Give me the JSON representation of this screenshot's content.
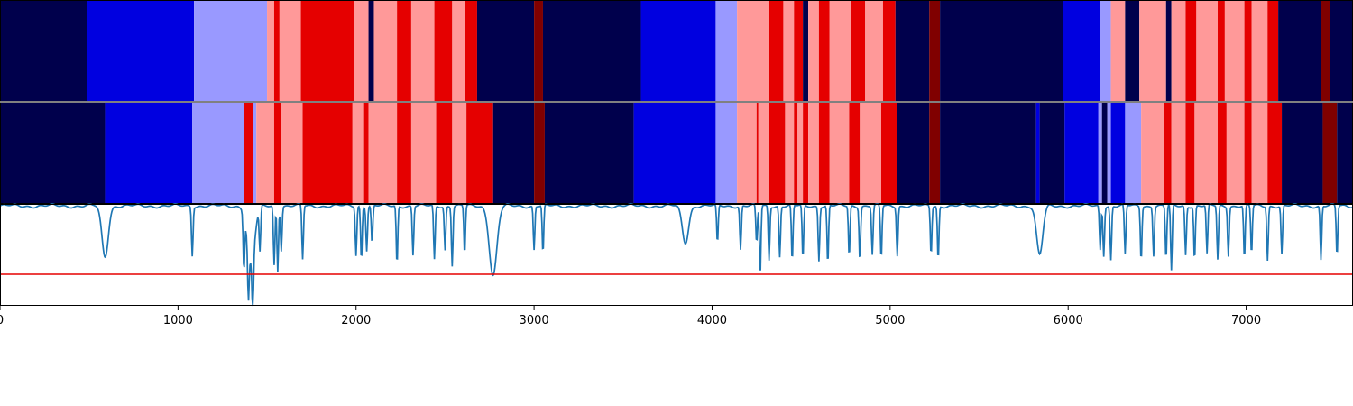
{
  "chart_data": {
    "type": "heatmap",
    "x_range": [
      0,
      7600
    ],
    "x_ticks": [
      0,
      1000,
      2000,
      3000,
      4000,
      5000,
      6000,
      7000
    ],
    "x_tick_labels": [
      "0",
      "1000",
      "2000",
      "3000",
      "4000",
      "5000",
      "6000",
      "7000"
    ],
    "state_colors": {
      "0": "#00004c",
      "1": "#0000e0",
      "2": "#9999ff",
      "3": "#ff9999",
      "4": "#e50000",
      "5": "#800000"
    },
    "track_1_states": [
      [
        0,
        490,
        0
      ],
      [
        490,
        1090,
        1
      ],
      [
        1090,
        1500,
        2
      ],
      [
        1500,
        1540,
        3
      ],
      [
        1540,
        1570,
        4
      ],
      [
        1570,
        1690,
        3
      ],
      [
        1690,
        1990,
        4
      ],
      [
        1990,
        2070,
        3
      ],
      [
        2070,
        2100,
        0
      ],
      [
        2100,
        2230,
        3
      ],
      [
        2230,
        2310,
        4
      ],
      [
        2310,
        2440,
        3
      ],
      [
        2440,
        2540,
        4
      ],
      [
        2540,
        2610,
        3
      ],
      [
        2610,
        2680,
        4
      ],
      [
        2680,
        3000,
        0
      ],
      [
        3000,
        3050,
        5
      ],
      [
        3050,
        3600,
        0
      ],
      [
        3600,
        4020,
        1
      ],
      [
        4020,
        4140,
        2
      ],
      [
        4140,
        4320,
        3
      ],
      [
        4320,
        4400,
        4
      ],
      [
        4400,
        4460,
        3
      ],
      [
        4460,
        4510,
        4
      ],
      [
        4510,
        4540,
        0
      ],
      [
        4540,
        4600,
        3
      ],
      [
        4600,
        4660,
        4
      ],
      [
        4660,
        4780,
        3
      ],
      [
        4780,
        4860,
        4
      ],
      [
        4860,
        4960,
        3
      ],
      [
        4960,
        5030,
        4
      ],
      [
        5030,
        5220,
        0
      ],
      [
        5220,
        5280,
        5
      ],
      [
        5280,
        5970,
        0
      ],
      [
        5970,
        6180,
        1
      ],
      [
        6180,
        6240,
        2
      ],
      [
        6240,
        6320,
        3
      ],
      [
        6320,
        6400,
        0
      ],
      [
        6400,
        6550,
        3
      ],
      [
        6550,
        6580,
        0
      ],
      [
        6580,
        6660,
        3
      ],
      [
        6660,
        6720,
        4
      ],
      [
        6720,
        6840,
        3
      ],
      [
        6840,
        6880,
        4
      ],
      [
        6880,
        6990,
        3
      ],
      [
        6990,
        7030,
        4
      ],
      [
        7030,
        7120,
        3
      ],
      [
        7120,
        7180,
        4
      ],
      [
        7180,
        7420,
        0
      ],
      [
        7420,
        7470,
        5
      ],
      [
        7470,
        7600,
        0
      ]
    ],
    "track_2_states": [
      [
        0,
        590,
        0
      ],
      [
        590,
        1080,
        1
      ],
      [
        1080,
        1370,
        2
      ],
      [
        1370,
        1420,
        4
      ],
      [
        1420,
        1440,
        2
      ],
      [
        1440,
        1540,
        3
      ],
      [
        1540,
        1580,
        4
      ],
      [
        1580,
        1700,
        3
      ],
      [
        1700,
        1980,
        4
      ],
      [
        1980,
        2040,
        3
      ],
      [
        2040,
        2070,
        4
      ],
      [
        2070,
        2230,
        3
      ],
      [
        2230,
        2310,
        4
      ],
      [
        2310,
        2450,
        3
      ],
      [
        2450,
        2540,
        4
      ],
      [
        2540,
        2620,
        3
      ],
      [
        2620,
        2770,
        4
      ],
      [
        2770,
        3000,
        0
      ],
      [
        3000,
        3060,
        5
      ],
      [
        3060,
        3560,
        0
      ],
      [
        3560,
        4020,
        1
      ],
      [
        4020,
        4140,
        2
      ],
      [
        4140,
        4250,
        3
      ],
      [
        4250,
        4260,
        4
      ],
      [
        4260,
        4320,
        3
      ],
      [
        4320,
        4410,
        4
      ],
      [
        4410,
        4460,
        3
      ],
      [
        4460,
        4480,
        4
      ],
      [
        4480,
        4510,
        3
      ],
      [
        4510,
        4540,
        4
      ],
      [
        4540,
        4600,
        3
      ],
      [
        4600,
        4660,
        4
      ],
      [
        4660,
        4770,
        3
      ],
      [
        4770,
        4830,
        4
      ],
      [
        4830,
        4950,
        3
      ],
      [
        4950,
        5040,
        4
      ],
      [
        5040,
        5220,
        0
      ],
      [
        5220,
        5280,
        5
      ],
      [
        5280,
        5820,
        0
      ],
      [
        5820,
        5840,
        1
      ],
      [
        5840,
        5980,
        0
      ],
      [
        5980,
        6170,
        1
      ],
      [
        6170,
        6190,
        2
      ],
      [
        6190,
        6220,
        0
      ],
      [
        6220,
        6240,
        2
      ],
      [
        6240,
        6320,
        1
      ],
      [
        6320,
        6410,
        2
      ],
      [
        6410,
        6540,
        3
      ],
      [
        6540,
        6580,
        4
      ],
      [
        6580,
        6660,
        3
      ],
      [
        6660,
        6710,
        4
      ],
      [
        6710,
        6840,
        3
      ],
      [
        6840,
        6890,
        4
      ],
      [
        6890,
        6990,
        3
      ],
      [
        6990,
        7030,
        4
      ],
      [
        7030,
        7120,
        3
      ],
      [
        7120,
        7200,
        4
      ],
      [
        7200,
        7430,
        0
      ],
      [
        7430,
        7510,
        5
      ],
      [
        7510,
        7600,
        0
      ]
    ],
    "line_series": {
      "color": "#1f77b4",
      "ylim": [
        0,
        1
      ],
      "baseline": 0.98,
      "broad_dips": [
        [
          590,
          0.48,
          25
        ],
        [
          1410,
          0.42,
          30
        ],
        [
          2770,
          0.3,
          30
        ],
        [
          3850,
          0.62,
          25
        ],
        [
          5840,
          0.5,
          25
        ]
      ],
      "sharp_dips": [
        [
          1080,
          0.5
        ],
        [
          1370,
          0.45
        ],
        [
          1395,
          0.48
        ],
        [
          1420,
          0.4
        ],
        [
          1460,
          0.55
        ],
        [
          1540,
          0.4
        ],
        [
          1560,
          0.35
        ],
        [
          1580,
          0.55
        ],
        [
          1700,
          0.45
        ],
        [
          2000,
          0.5
        ],
        [
          2030,
          0.45
        ],
        [
          2060,
          0.55
        ],
        [
          2090,
          0.6
        ],
        [
          2230,
          0.4
        ],
        [
          2320,
          0.5
        ],
        [
          2440,
          0.45
        ],
        [
          2500,
          0.55
        ],
        [
          2540,
          0.4
        ],
        [
          2610,
          0.5
        ],
        [
          3000,
          0.55
        ],
        [
          3050,
          0.5
        ],
        [
          4030,
          0.6
        ],
        [
          4160,
          0.55
        ],
        [
          4250,
          0.6
        ],
        [
          4270,
          0.28
        ],
        [
          4320,
          0.45
        ],
        [
          4380,
          0.48
        ],
        [
          4450,
          0.42
        ],
        [
          4510,
          0.45
        ],
        [
          4600,
          0.45
        ],
        [
          4650,
          0.4
        ],
        [
          4770,
          0.48
        ],
        [
          4830,
          0.45
        ],
        [
          4900,
          0.5
        ],
        [
          4950,
          0.45
        ],
        [
          5040,
          0.5
        ],
        [
          5230,
          0.5
        ],
        [
          5270,
          0.45
        ],
        [
          6180,
          0.55
        ],
        [
          6200,
          0.5
        ],
        [
          6240,
          0.45
        ],
        [
          6320,
          0.5
        ],
        [
          6410,
          0.45
        ],
        [
          6480,
          0.5
        ],
        [
          6550,
          0.45
        ],
        [
          6580,
          0.33
        ],
        [
          6660,
          0.5
        ],
        [
          6710,
          0.45
        ],
        [
          6780,
          0.5
        ],
        [
          6840,
          0.45
        ],
        [
          6900,
          0.5
        ],
        [
          6990,
          0.45
        ],
        [
          7030,
          0.5
        ],
        [
          7120,
          0.45
        ],
        [
          7200,
          0.5
        ],
        [
          7420,
          0.45
        ],
        [
          7510,
          0.48
        ]
      ]
    },
    "threshold": {
      "value": 0.31,
      "color": "#e50000"
    }
  }
}
